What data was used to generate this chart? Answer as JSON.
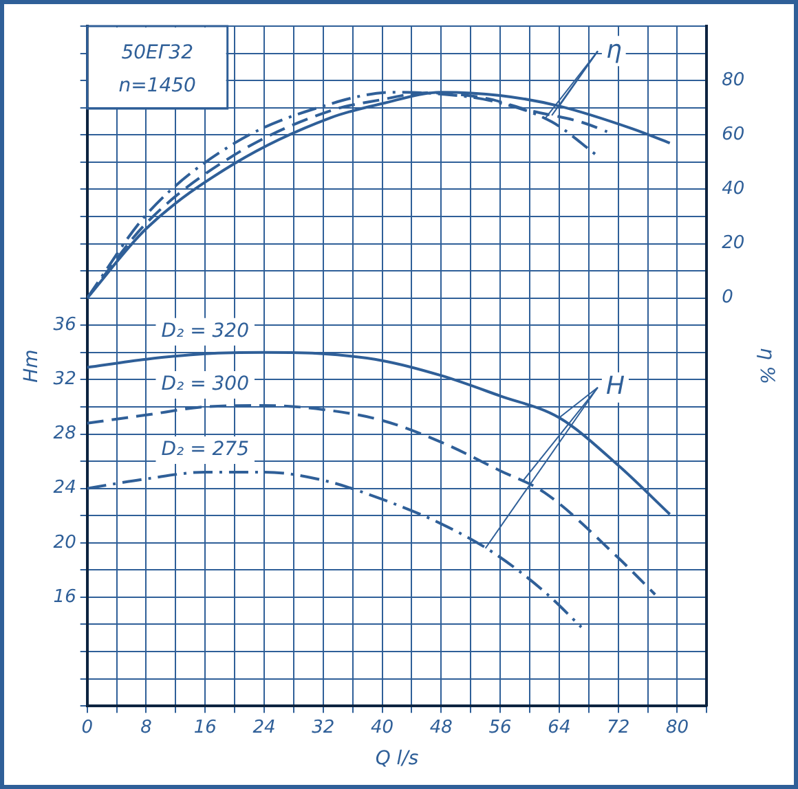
{
  "chart_data": {
    "type": "line",
    "title": "50ЕГ32",
    "subtitle": "n=1450",
    "xlabel": "Q l/s",
    "ylabel": "Hm",
    "y2label": "η %",
    "xlim": [
      0,
      84
    ],
    "xticks": [
      0,
      {
        "value": 4,
        "label": null
      },
      8,
      {
        "value": 12,
        "label": null
      },
      16,
      {
        "value": 20,
        "label": null
      },
      24,
      {
        "value": 28,
        "label": null
      },
      32,
      {
        "value": 36,
        "label": null
      },
      40,
      {
        "value": 44,
        "label": null
      },
      48,
      {
        "value": 52,
        "label": null
      },
      56,
      {
        "value": 60,
        "label": null
      },
      64,
      {
        "value": 68,
        "label": null
      },
      72,
      {
        "value": 76,
        "label": null
      },
      80,
      {
        "value": 84,
        "label": null
      }
    ],
    "ylim": [
      8,
      58
    ],
    "yticks": [
      {
        "value": 8,
        "label": null
      },
      {
        "value": 10,
        "label": null
      },
      {
        "value": 12,
        "label": null
      },
      {
        "value": 14,
        "label": null
      },
      16,
      {
        "value": 18,
        "label": null
      },
      20,
      {
        "value": 22,
        "label": null
      },
      24,
      {
        "value": 26,
        "label": null
      },
      28,
      {
        "value": 30,
        "label": null
      },
      32,
      {
        "value": 34,
        "label": null
      },
      36,
      {
        "value": 38,
        "label": null
      },
      {
        "value": 40,
        "label": null
      },
      {
        "value": 42,
        "label": null
      },
      {
        "value": 44,
        "label": null
      },
      {
        "value": 46,
        "label": null
      },
      {
        "value": 48,
        "label": null
      },
      {
        "value": 50,
        "label": null
      },
      {
        "value": 52,
        "label": null
      },
      {
        "value": 54,
        "label": null
      },
      {
        "value": 56,
        "label": null
      },
      {
        "value": 58,
        "label": null
      }
    ],
    "y2lim": [
      -150,
      100
    ],
    "y2ticks": [
      0,
      20,
      40,
      60,
      80
    ],
    "grid": true,
    "legend": false,
    "marker": "none",
    "series": [
      {
        "name": "D₂ = 320",
        "color": "#2f5f98",
        "line_style": "solid",
        "x": [
          0,
          8,
          16,
          24,
          32,
          40,
          48,
          56,
          64,
          72,
          79
        ],
        "values": [
          32.9,
          33.5,
          33.9,
          34,
          33.9,
          33.4,
          32.3,
          30.8,
          29.2,
          25.7,
          22.1
        ]
      },
      {
        "name": "D₂ = 300",
        "color": "#2f5f98",
        "line_style": "dashed",
        "x": [
          0,
          8,
          16,
          24,
          32,
          40,
          48,
          56,
          62,
          72,
          77
        ],
        "values": [
          28.8,
          29.4,
          30,
          30.1,
          29.8,
          29,
          27.4,
          25.3,
          23.7,
          18.9,
          16.2
        ]
      },
      {
        "name": "D₂ = 275",
        "color": "#2f5f98",
        "line_style": "dotted",
        "x": [
          0,
          8,
          16,
          24,
          32,
          40,
          48,
          55,
          62,
          67
        ],
        "values": [
          24,
          24.7,
          25.2,
          25.2,
          24.6,
          23.2,
          21.4,
          19.3,
          16.4,
          13.8
        ]
      },
      {
        "color": "#2f5f98",
        "line_style": "solid",
        "axis": "y2",
        "x": [
          0,
          8,
          20,
          33,
          40,
          48,
          56,
          64,
          74,
          79
        ],
        "values": [
          0,
          25.5,
          49.5,
          66.3,
          71.5,
          75.7,
          74.5,
          70.6,
          62.2,
          57
        ]
      },
      {
        "color": "#2f5f98",
        "line_style": "dashed",
        "axis": "y2",
        "x": [
          0,
          8,
          20,
          33,
          40,
          46,
          54,
          60,
          67,
          70.5
        ],
        "values": [
          0,
          27.5,
          52.7,
          68.9,
          73,
          75.5,
          73.5,
          69,
          64.7,
          61.2
        ]
      },
      {
        "color": "#2f5f98",
        "line_style": "dotted",
        "axis": "y2",
        "x": [
          0,
          8,
          20,
          33,
          41.5,
          48,
          55,
          63,
          69
        ],
        "values": [
          0,
          30.6,
          57,
          71.4,
          75.7,
          75,
          72.4,
          64.8,
          52.7
        ]
      }
    ],
    "annotations": [
      {
        "text": "η",
        "x": 64,
        "y": 52.12
      },
      {
        "text": "H",
        "x": 64,
        "y": 29.2
      }
    ]
  }
}
